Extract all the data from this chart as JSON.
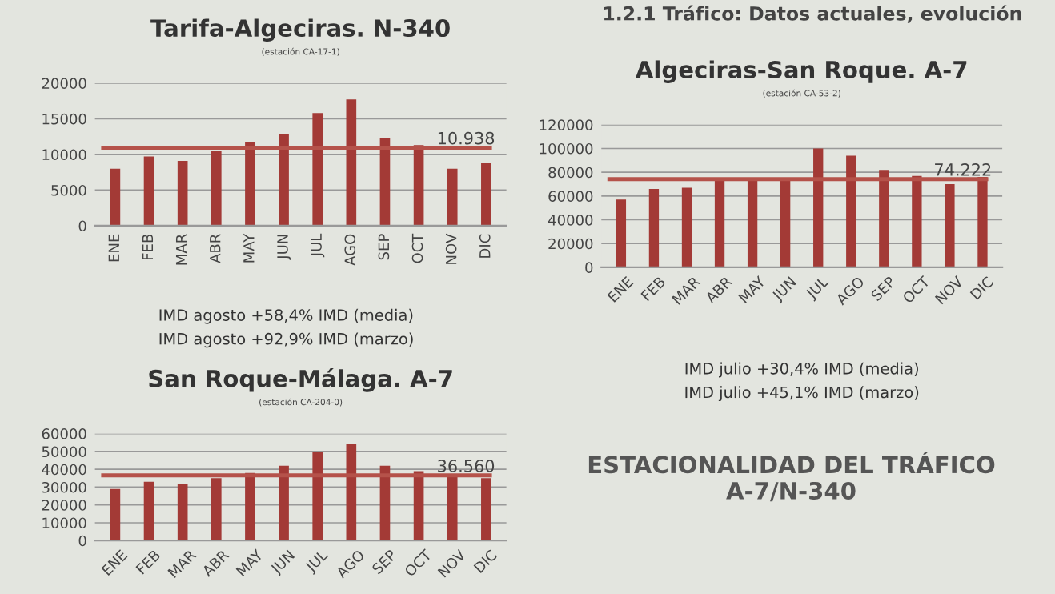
{
  "chart_data": [
    {
      "type": "bar",
      "title": "Tarifa-Algeciras. N-340",
      "subtitle": "(estación CA-17-1)",
      "categories": [
        "ENE",
        "FEB",
        "MAR",
        "ABR",
        "MAY",
        "JUN",
        "JUL",
        "AGO",
        "SEP",
        "OCT",
        "NOV",
        "DIC"
      ],
      "values": [
        8000,
        9700,
        9100,
        10500,
        11700,
        12900,
        15800,
        17700,
        12300,
        11300,
        8000,
        8800
      ],
      "color": "#a33a36",
      "ylim": [
        0,
        20000
      ],
      "yticks": [
        0,
        5000,
        10000,
        15000,
        20000
      ],
      "grid": "y",
      "ref_lines": [
        {
          "axis": "y",
          "value": 10938,
          "label": "10.938",
          "color": "#b5524a"
        }
      ],
      "annotations": [
        "IMD agosto +58,4% IMD (media)",
        "IMD agosto +92,9% IMD (marzo)"
      ]
    },
    {
      "type": "bar",
      "title": "Algeciras-San Roque. A-7",
      "subtitle": "(estación CA-53-2)",
      "categories": [
        "ENE",
        "FEB",
        "MAR",
        "ABR",
        "MAY",
        "JUN",
        "JUL",
        "AGO",
        "SEP",
        "OCT",
        "NOV",
        "DIC"
      ],
      "values": [
        57000,
        66000,
        67000,
        74000,
        75000,
        75000,
        100000,
        94000,
        82000,
        77000,
        70000,
        76000
      ],
      "color": "#a33a36",
      "ylim": [
        0,
        120000
      ],
      "yticks": [
        0,
        20000,
        40000,
        60000,
        80000,
        100000,
        120000
      ],
      "grid": "y",
      "ref_lines": [
        {
          "axis": "y",
          "value": 74222,
          "label": "74.222",
          "color": "#b5524a"
        }
      ],
      "annotations": [
        "IMD julio +30,4% IMD (media)",
        "IMD julio +45,1% IMD (marzo)"
      ]
    },
    {
      "type": "bar",
      "title": "San Roque-Málaga. A-7",
      "subtitle": "(estación CA-204-0)",
      "categories": [
        "ENE",
        "FEB",
        "MAR",
        "ABR",
        "MAY",
        "JUN",
        "JUL",
        "AGO",
        "SEP",
        "OCT",
        "NOV",
        "DIC"
      ],
      "values": [
        29000,
        33000,
        32000,
        35000,
        38000,
        42000,
        50000,
        54000,
        42000,
        39000,
        37000,
        35000
      ],
      "color": "#a33a36",
      "ylim": [
        0,
        60000
      ],
      "yticks": [
        0,
        10000,
        20000,
        30000,
        40000,
        50000,
        60000
      ],
      "grid": "y",
      "ref_lines": [
        {
          "axis": "y",
          "value": 36560,
          "label": "36.560",
          "color": "#b5524a"
        }
      ]
    },
    {
      "type": "other",
      "title": "ESTACIONALIDAD DEL TRÁFICO\nA-7/N-340",
      "annotations": [
        "1.2.1 Tráfico: Datos actuales, evolución"
      ]
    }
  ]
}
